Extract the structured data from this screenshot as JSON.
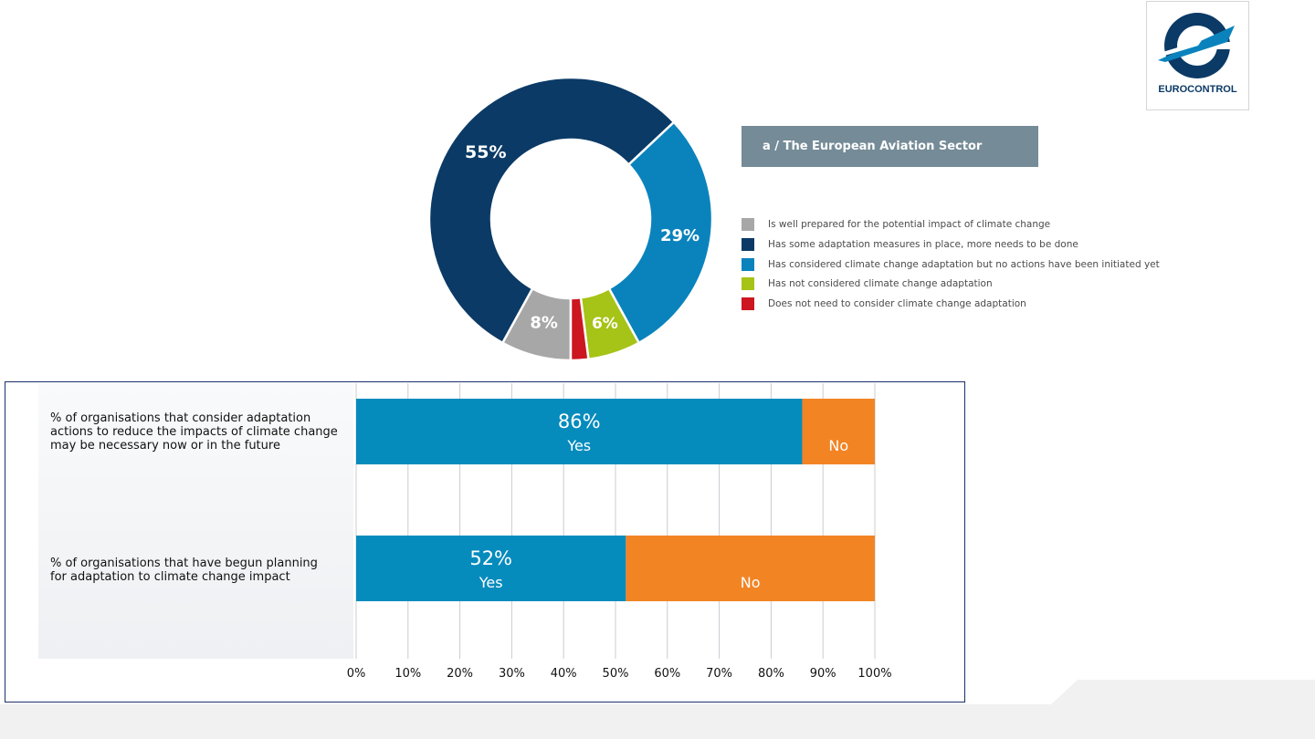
{
  "logo": {
    "text": "EUROCONTROL"
  },
  "chart_data": [
    {
      "type": "pie",
      "title": "a /  The European Aviation Sector",
      "donut": true,
      "slices": [
        {
          "label": "Is well prepared for the potential impact of climate change",
          "value": 8,
          "display": "8%",
          "color": "#a7a7a7"
        },
        {
          "label": "Has some adaptation measures in place, more needs to be done",
          "value": 55,
          "display": "55%",
          "color": "#0b3a66"
        },
        {
          "label": "Has considered climate change adaptation but no actions have been initiated yet",
          "value": 29,
          "display": "29%",
          "color": "#0a83bd"
        },
        {
          "label": "Has not considered climate change adaptation",
          "value": 6,
          "display": "6%",
          "color": "#a6c317"
        },
        {
          "label": "Does not need to consider climate change adaptation",
          "value": 2,
          "display": "2%",
          "color": "#cc1620"
        }
      ],
      "legend_placement": "right"
    },
    {
      "type": "bar",
      "orientation": "horizontal",
      "stacked": true,
      "categories": [
        "% of organisations that consider adaptation actions to reduce the impacts of climate change may be necessary now or in the future",
        "% of organisations that have begun planning for adaptation to climate change impact"
      ],
      "series": [
        {
          "name": "Yes",
          "values": [
            86,
            52
          ],
          "value_labels": [
            "86%",
            "52%"
          ],
          "color": "#068bbd"
        },
        {
          "name": "No",
          "values": [
            14,
            48
          ],
          "color": "#f28424"
        }
      ],
      "xlim": [
        0,
        100
      ],
      "xticks": [
        "0%",
        "10%",
        "20%",
        "30%",
        "40%",
        "50%",
        "60%",
        "70%",
        "80%",
        "90%",
        "100%"
      ],
      "grid": true
    }
  ]
}
